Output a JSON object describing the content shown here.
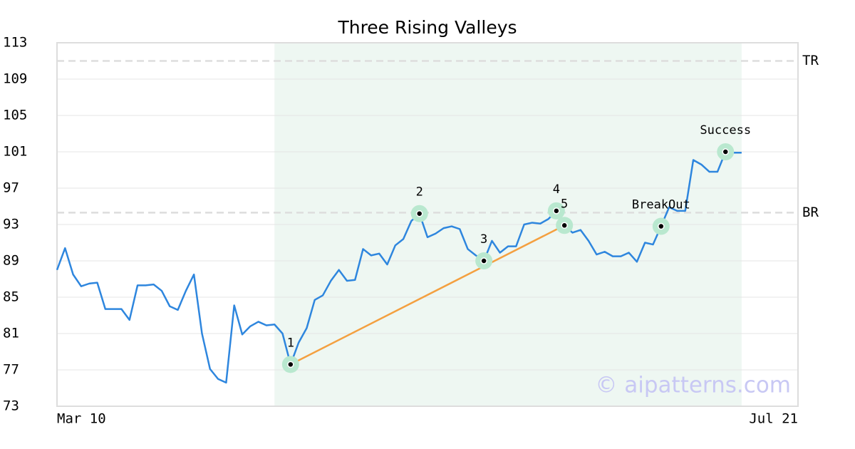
{
  "chart_data": {
    "type": "line",
    "title": "Three Rising Valleys",
    "x": [
      0,
      1,
      2,
      3,
      4,
      5,
      6,
      7,
      8,
      9,
      10,
      11,
      12,
      13,
      14,
      15,
      16,
      17,
      18,
      19,
      20,
      21,
      22,
      23,
      24,
      25,
      26,
      27,
      28,
      29,
      30,
      31,
      32,
      33,
      34,
      35,
      36,
      37,
      38,
      39,
      40,
      41,
      42,
      43,
      44,
      45,
      46,
      47,
      48,
      49,
      50,
      51,
      52,
      53,
      54,
      55,
      56,
      57,
      58,
      59,
      60,
      61,
      62,
      63,
      64,
      65,
      66,
      67,
      68,
      69,
      70,
      71,
      72,
      73,
      74,
      75,
      76,
      77,
      78,
      79,
      80,
      81,
      82,
      83,
      84,
      85
    ],
    "series": [
      {
        "color": "#2e86de",
        "values": [
          88.0,
          90.4,
          87.5,
          86.2,
          86.5,
          86.6,
          83.7,
          83.7,
          83.7,
          82.5,
          86.3,
          86.3,
          86.4,
          85.7,
          84.0,
          83.6,
          85.7,
          87.5,
          81.0,
          77.1,
          76.0,
          75.6,
          84.1,
          80.9,
          81.8,
          82.3,
          81.9,
          82.0,
          81.0,
          77.6,
          80.0,
          81.6,
          84.7,
          85.2,
          86.8,
          88.0,
          86.8,
          86.9,
          90.3,
          89.6,
          89.8,
          88.6,
          90.7,
          91.4,
          93.4,
          94.2,
          91.6,
          92.0,
          92.6,
          92.8,
          92.5,
          90.3,
          89.6,
          89.0,
          91.2,
          89.9,
          90.6,
          90.6,
          93.0,
          93.2,
          93.1,
          93.6,
          94.5,
          92.9,
          92.1,
          92.4,
          91.2,
          89.7,
          90.0,
          89.5,
          89.5,
          89.9,
          88.9,
          91.0,
          90.8,
          92.8,
          94.9,
          94.5,
          94.5,
          100.1,
          99.6,
          98.8,
          98.8,
          101.0,
          100.9,
          100.9
        ]
      }
    ],
    "xlim": [
      0,
      92
    ],
    "xticks": [
      {
        "value": 0,
        "label": "Mar 10"
      },
      {
        "value": 92,
        "label": "Jul 21"
      }
    ],
    "ylim": [
      73,
      113
    ],
    "yticks": [
      73,
      77,
      81,
      85,
      89,
      93,
      97,
      101,
      105,
      109,
      113
    ],
    "grid": true,
    "shaded_range": [
      27,
      85
    ],
    "levels": [
      {
        "label": "TR",
        "value": 111
      },
      {
        "label": "BR",
        "value": 94.3
      }
    ],
    "trendline": {
      "x": [
        29,
        63
      ],
      "y": [
        77.6,
        92.9
      ],
      "color": "#f4a040"
    },
    "annotations": [
      {
        "text": "1",
        "x": 29,
        "y": 77.6
      },
      {
        "text": "2",
        "x": 45,
        "y": 94.2
      },
      {
        "text": "3",
        "x": 53,
        "y": 89.0
      },
      {
        "text": "4",
        "x": 62,
        "y": 94.5
      },
      {
        "text": "5",
        "x": 63,
        "y": 92.9
      },
      {
        "text": "BreakOut",
        "x": 75,
        "y": 92.8
      },
      {
        "text": "Success",
        "x": 83,
        "y": 101.0
      }
    ],
    "watermark": "© aipatterns.com"
  }
}
